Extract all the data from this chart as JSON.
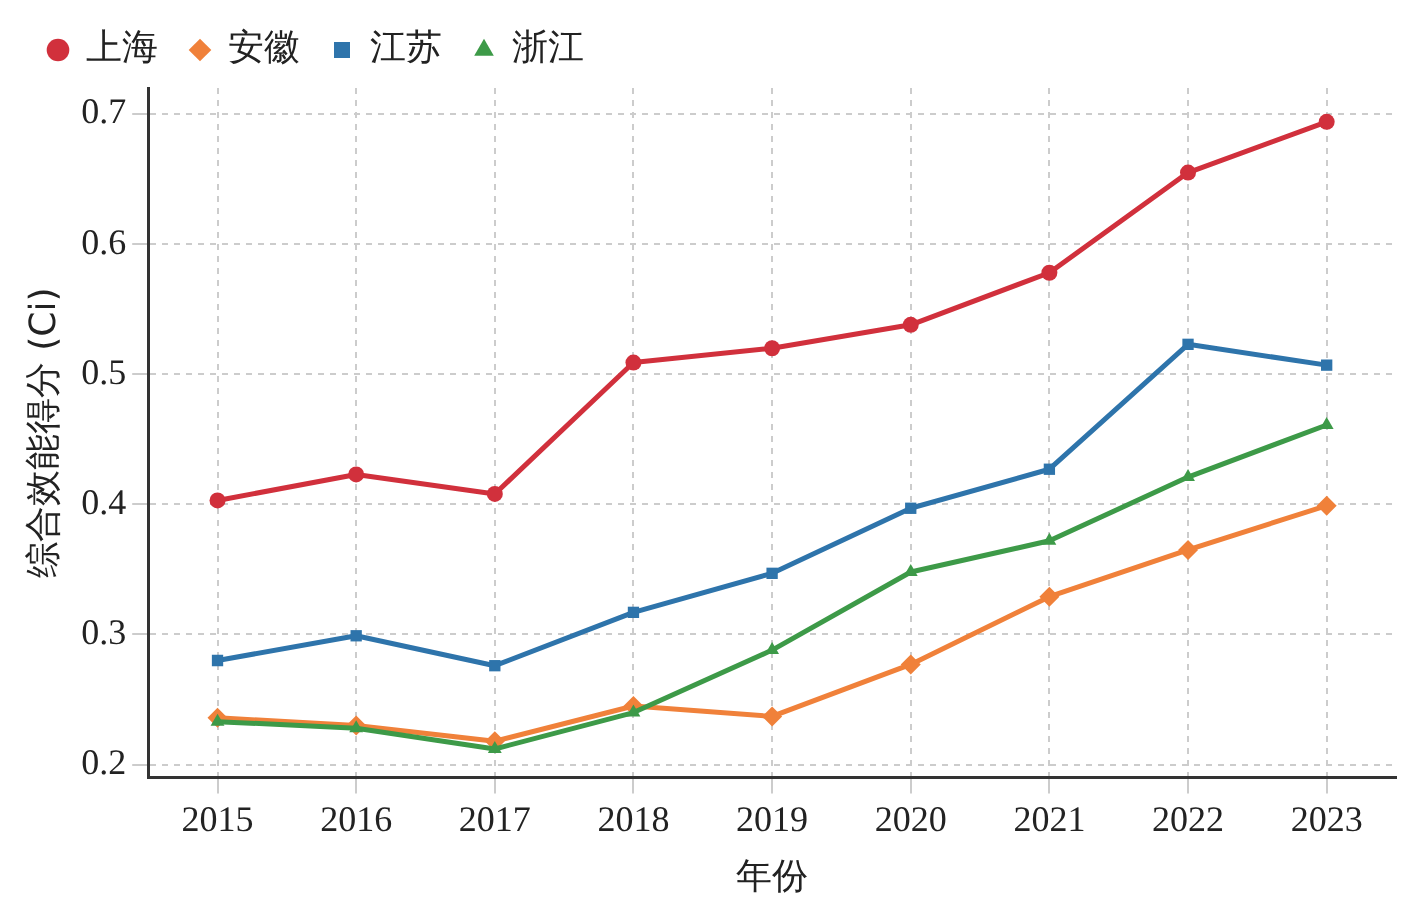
{
  "chart_data": {
    "type": "line",
    "xlabel": "年份",
    "ylabel": "综合效能得分 (Ci)",
    "categories": [
      "2015",
      "2016",
      "2017",
      "2018",
      "2019",
      "2020",
      "2021",
      "2022",
      "2023"
    ],
    "series": [
      {
        "name": "上海",
        "color": "#d1303c",
        "marker": "circle",
        "values": [
          0.403,
          0.423,
          0.408,
          0.509,
          0.52,
          0.538,
          0.578,
          0.655,
          0.694
        ]
      },
      {
        "name": "安徽",
        "color": "#f0813a",
        "marker": "diamond",
        "values": [
          0.236,
          0.23,
          0.218,
          0.245,
          0.237,
          0.277,
          0.329,
          0.365,
          0.399
        ]
      },
      {
        "name": "江苏",
        "color": "#2e74ab",
        "marker": "square",
        "values": [
          0.28,
          0.299,
          0.276,
          0.317,
          0.347,
          0.397,
          0.427,
          0.523,
          0.507
        ]
      },
      {
        "name": "浙江",
        "color": "#3d9a48",
        "marker": "triangle",
        "values": [
          0.233,
          0.228,
          0.212,
          0.24,
          0.288,
          0.348,
          0.372,
          0.421,
          0.461
        ]
      }
    ],
    "ylim": [
      0.19,
      0.72
    ],
    "yticks": [
      0.2,
      0.3,
      0.4,
      0.5,
      0.6,
      0.7
    ],
    "grid": true,
    "legend": "top left",
    "line_style": "solid"
  }
}
